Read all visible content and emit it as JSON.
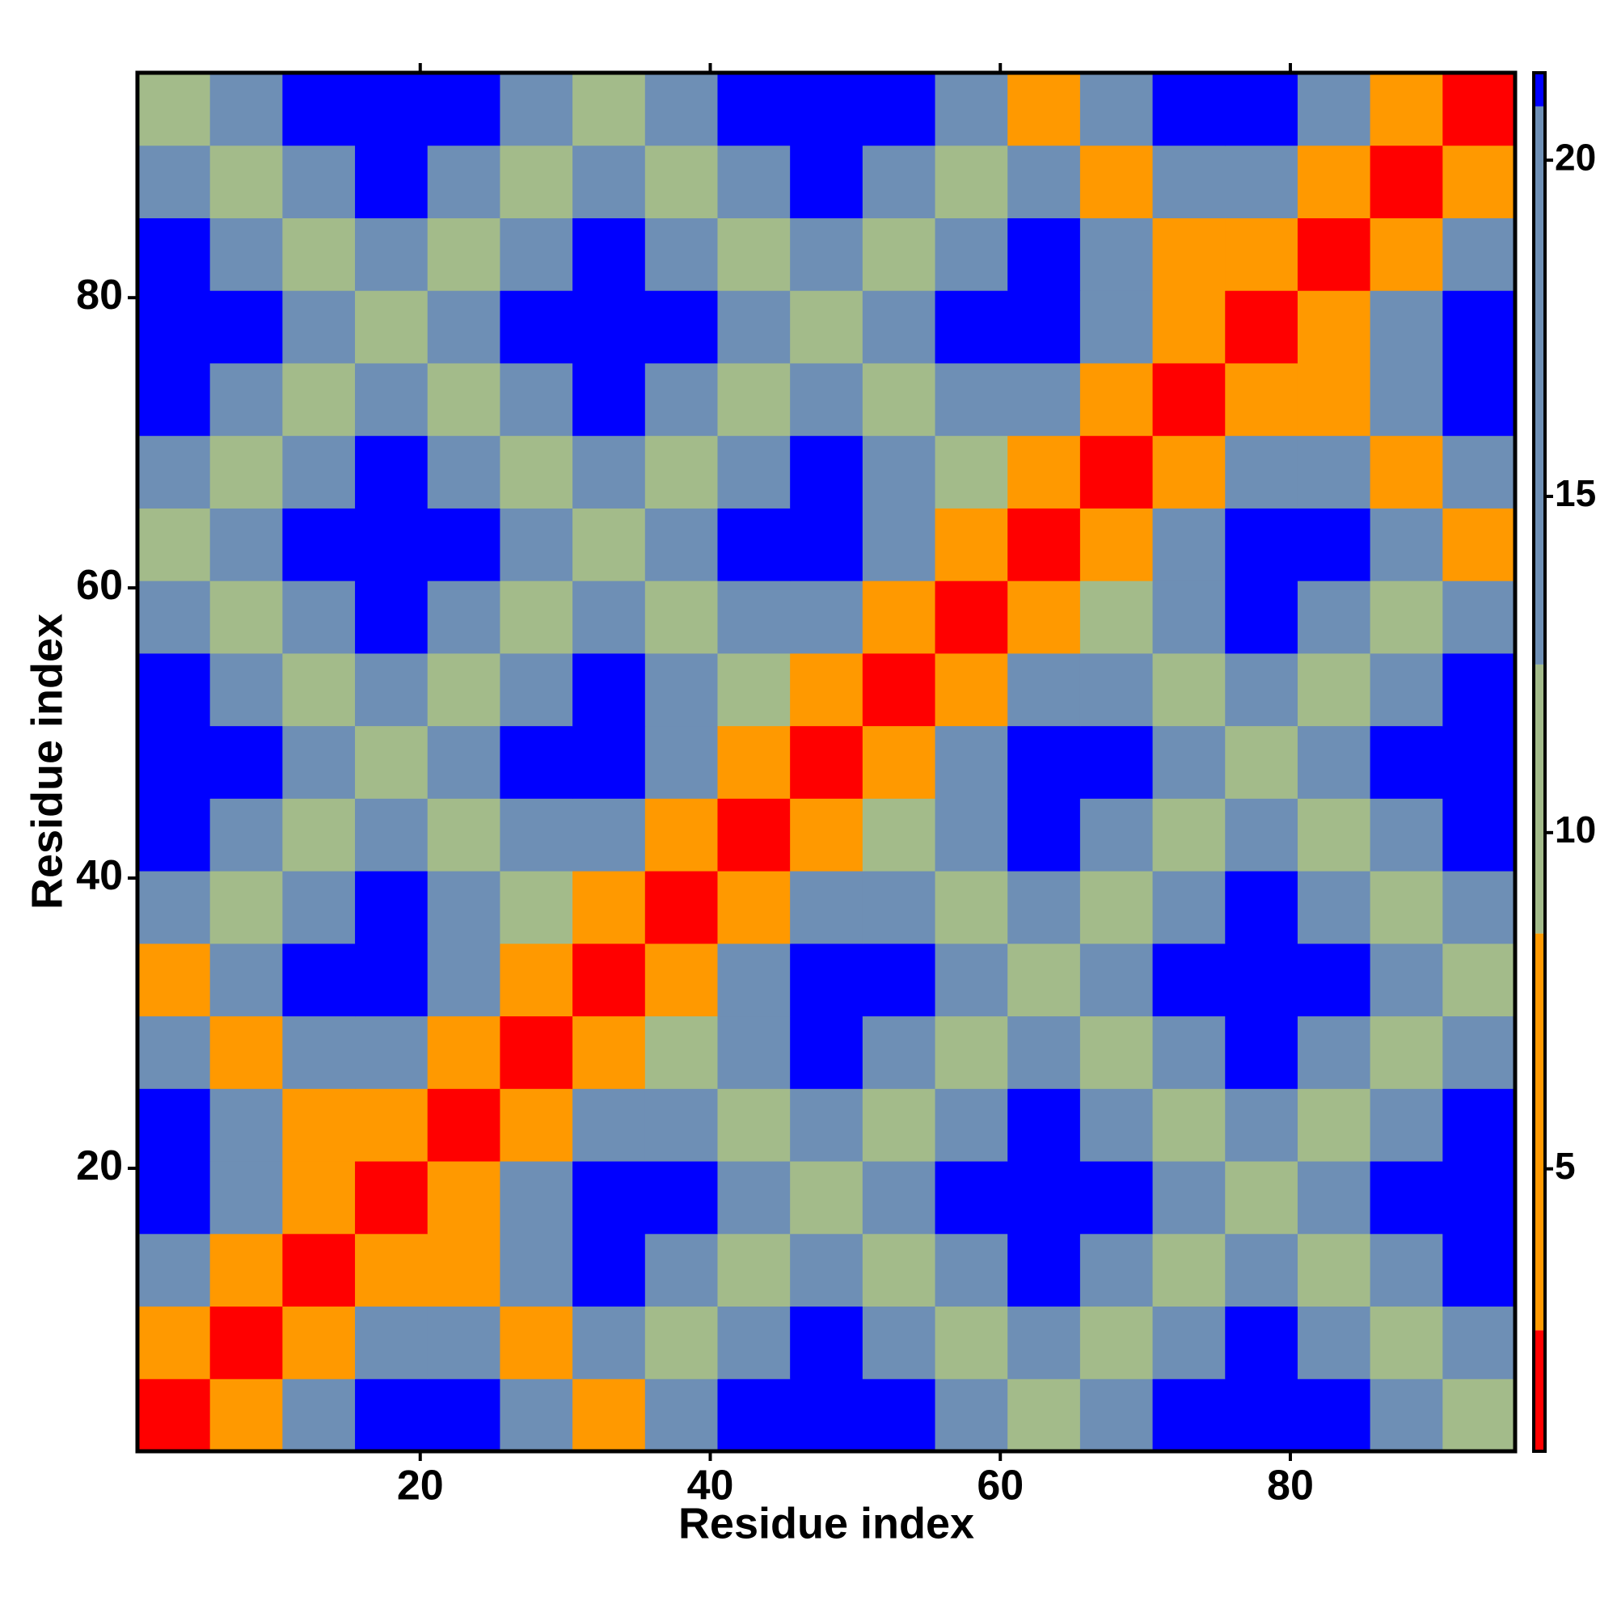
{
  "chart_data": {
    "type": "heatmap",
    "x_label": "Residue index",
    "y_label": "Residue index",
    "x": [
      3,
      8,
      13,
      18,
      23,
      28,
      33,
      38,
      43,
      48,
      53,
      58,
      63,
      68,
      73,
      78,
      83,
      88,
      93
    ],
    "y": [
      3,
      8,
      13,
      18,
      23,
      28,
      33,
      38,
      43,
      48,
      53,
      58,
      63,
      68,
      73,
      78,
      83,
      88,
      93
    ],
    "z": [
      [
        2,
        7,
        14,
        22,
        22,
        16,
        6,
        16,
        22,
        22,
        22,
        16,
        10,
        16,
        22,
        22,
        22,
        16,
        10
      ],
      [
        7,
        2,
        7,
        14,
        16,
        6,
        16,
        11,
        16,
        22,
        16,
        10,
        16,
        11,
        16,
        22,
        16,
        10,
        16
      ],
      [
        14,
        7,
        2,
        7,
        6,
        16,
        22,
        16,
        11,
        16,
        10,
        16,
        22,
        16,
        11,
        16,
        10,
        16,
        22
      ],
      [
        22,
        14,
        7,
        2,
        7,
        14,
        22,
        22,
        16,
        10,
        16,
        22,
        22,
        22,
        16,
        10,
        16,
        22,
        22
      ],
      [
        22,
        16,
        6,
        7,
        2,
        7,
        14,
        16,
        10,
        16,
        11,
        16,
        22,
        16,
        10,
        16,
        11,
        16,
        22
      ],
      [
        16,
        6,
        16,
        14,
        7,
        2,
        7,
        10,
        16,
        22,
        16,
        11,
        16,
        10,
        16,
        22,
        16,
        11,
        16
      ],
      [
        6,
        16,
        22,
        22,
        14,
        7,
        2,
        7,
        14,
        22,
        22,
        16,
        10,
        16,
        22,
        22,
        22,
        16,
        10
      ],
      [
        16,
        11,
        16,
        22,
        16,
        10,
        7,
        2,
        7,
        14,
        16,
        10,
        16,
        11,
        16,
        22,
        16,
        10,
        16
      ],
      [
        22,
        16,
        11,
        16,
        10,
        16,
        14,
        7,
        2,
        7,
        10,
        16,
        22,
        16,
        11,
        16,
        10,
        16,
        22
      ],
      [
        22,
        22,
        16,
        10,
        16,
        22,
        22,
        14,
        7,
        2,
        7,
        14,
        22,
        22,
        16,
        10,
        16,
        22,
        22
      ],
      [
        22,
        16,
        10,
        16,
        11,
        16,
        22,
        16,
        10,
        7,
        2,
        7,
        14,
        16,
        10,
        16,
        11,
        16,
        22
      ],
      [
        16,
        10,
        16,
        22,
        16,
        11,
        16,
        10,
        16,
        14,
        7,
        2,
        7,
        10,
        16,
        22,
        16,
        11,
        16
      ],
      [
        10,
        16,
        22,
        22,
        22,
        16,
        10,
        16,
        22,
        22,
        14,
        7,
        2,
        7,
        14,
        22,
        22,
        16,
        6
      ],
      [
        16,
        11,
        16,
        22,
        16,
        10,
        16,
        11,
        16,
        22,
        16,
        10,
        7,
        2,
        7,
        14,
        16,
        6,
        16
      ],
      [
        22,
        16,
        11,
        16,
        10,
        16,
        22,
        16,
        11,
        16,
        10,
        16,
        14,
        7,
        2,
        7,
        6,
        16,
        22
      ],
      [
        22,
        22,
        16,
        10,
        16,
        22,
        22,
        22,
        16,
        10,
        16,
        22,
        22,
        14,
        7,
        2,
        7,
        14,
        22
      ],
      [
        22,
        16,
        10,
        16,
        11,
        16,
        22,
        16,
        10,
        16,
        11,
        16,
        22,
        16,
        6,
        7,
        2,
        7,
        14
      ],
      [
        16,
        10,
        16,
        22,
        16,
        11,
        16,
        10,
        16,
        22,
        16,
        11,
        16,
        6,
        16,
        14,
        7,
        2,
        7
      ],
      [
        10,
        16,
        22,
        22,
        22,
        16,
        10,
        16,
        22,
        22,
        22,
        16,
        6,
        16,
        22,
        22,
        14,
        7,
        2
      ]
    ],
    "xlim": [
      0.5,
      95.5
    ],
    "ylim": [
      0.5,
      95.5
    ],
    "xticks": [
      20,
      40,
      60,
      80
    ],
    "yticks": [
      20,
      40,
      60,
      80
    ],
    "clim": [
      0.8,
      21.3
    ],
    "cticks": [
      5,
      10,
      15,
      20
    ],
    "colorscale": [
      {
        "max": 2.6,
        "color": "#ff0000"
      },
      {
        "max": 8.5,
        "color": "#ff9900"
      },
      {
        "max": 12.5,
        "color": "#a3bb8a"
      },
      {
        "max": 20.8,
        "color": "#6e8fb5"
      },
      {
        "color": "#0000ff"
      }
    ]
  }
}
